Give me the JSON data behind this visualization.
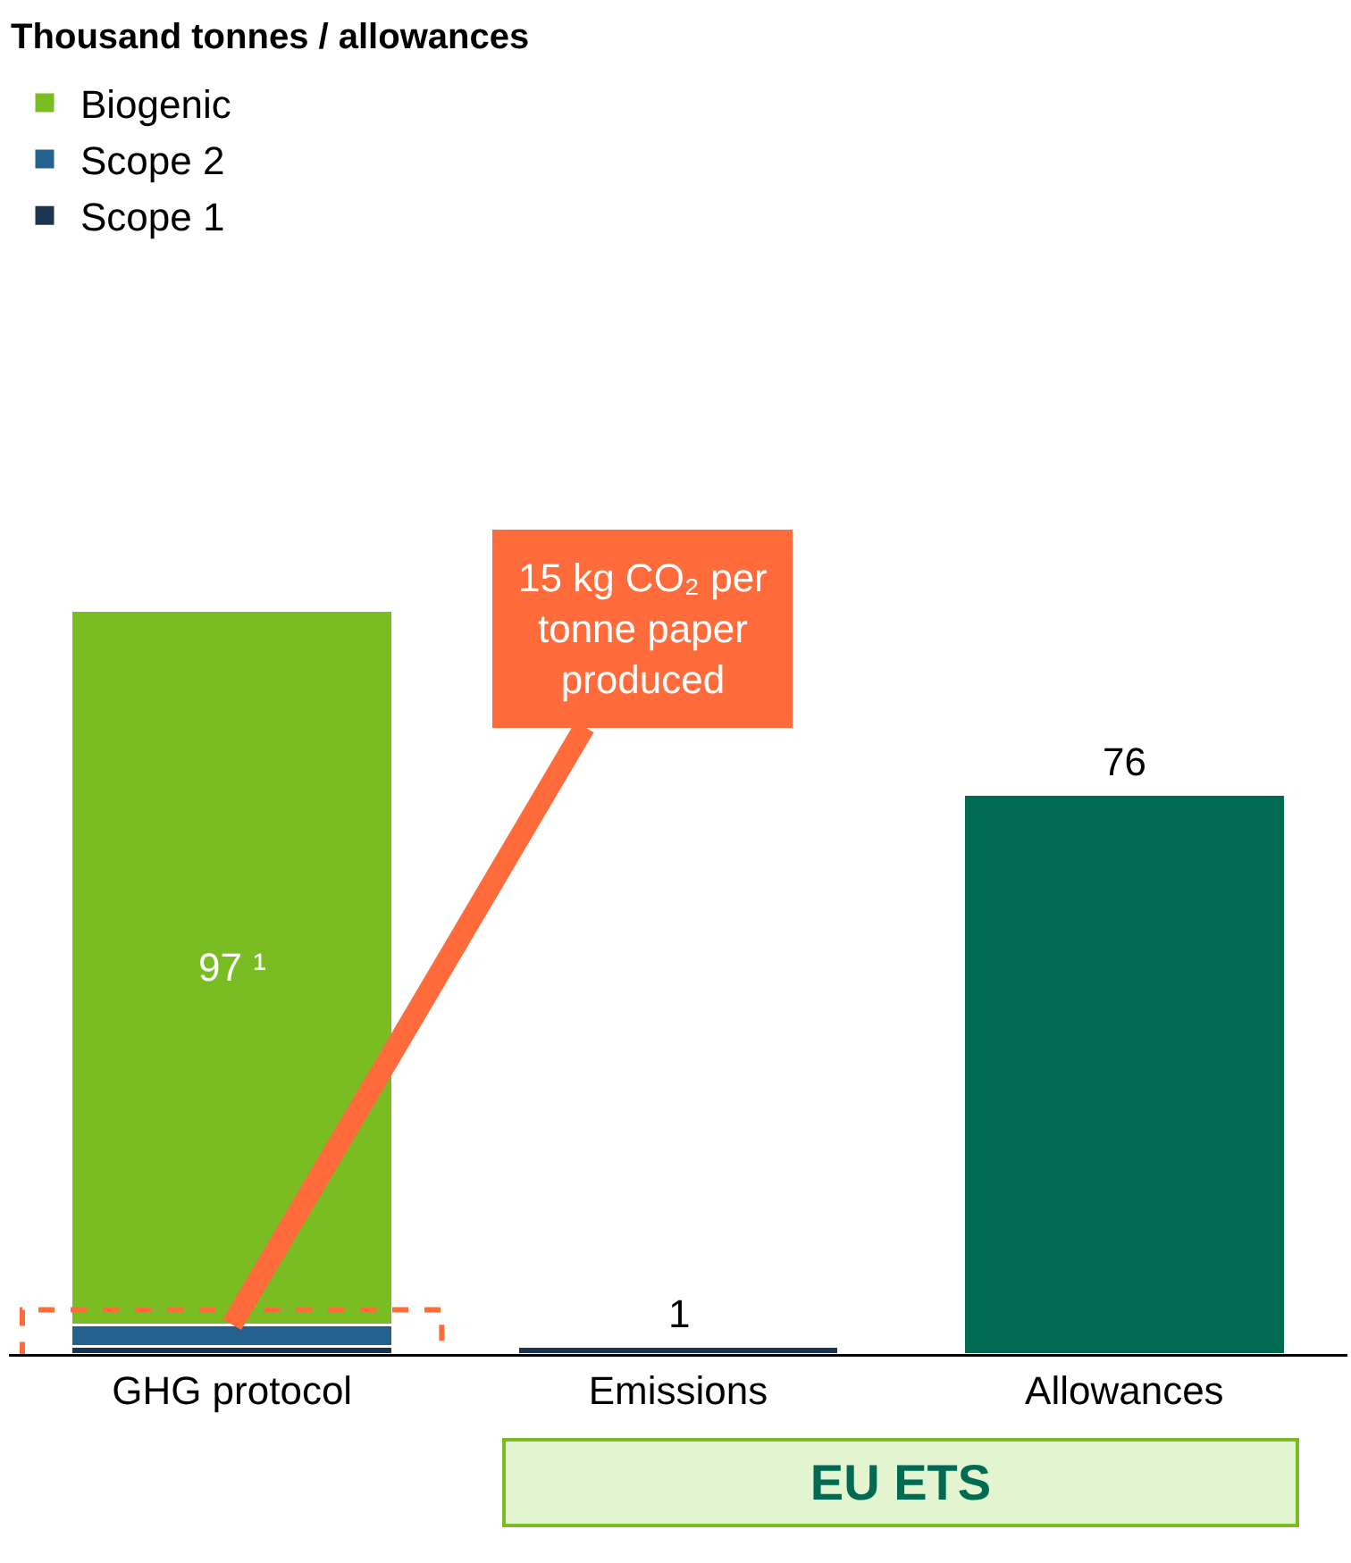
{
  "chart_data": {
    "type": "bar",
    "title": "Thousand tonnes / allowances",
    "categories": [
      "GHG protocol",
      "Emissions",
      "Allowances"
    ],
    "stacked": true,
    "series": [
      {
        "name": "Scope 1",
        "color": "#1b3550",
        "values": [
          1,
          1,
          null
        ],
        "value_labels": [
          null,
          "1",
          null
        ]
      },
      {
        "name": "Scope 2",
        "color": "#24618f",
        "values": [
          3,
          null,
          null
        ],
        "value_labels": [
          null,
          null,
          null
        ]
      },
      {
        "name": "Biogenic",
        "color": "#7abd22",
        "values": [
          97,
          null,
          null
        ],
        "value_labels": [
          "97 ¹",
          null,
          null
        ]
      },
      {
        "color": "#006a52",
        "values": [
          null,
          null,
          76
        ],
        "value_labels": [
          null,
          null,
          "76"
        ]
      }
    ],
    "legend": "top left",
    "annotations": [
      {
        "text": "15 kg CO₂ per tonne paper produced",
        "x": "GHG protocol",
        "y": 4
      },
      "EU ETS"
    ]
  }
}
